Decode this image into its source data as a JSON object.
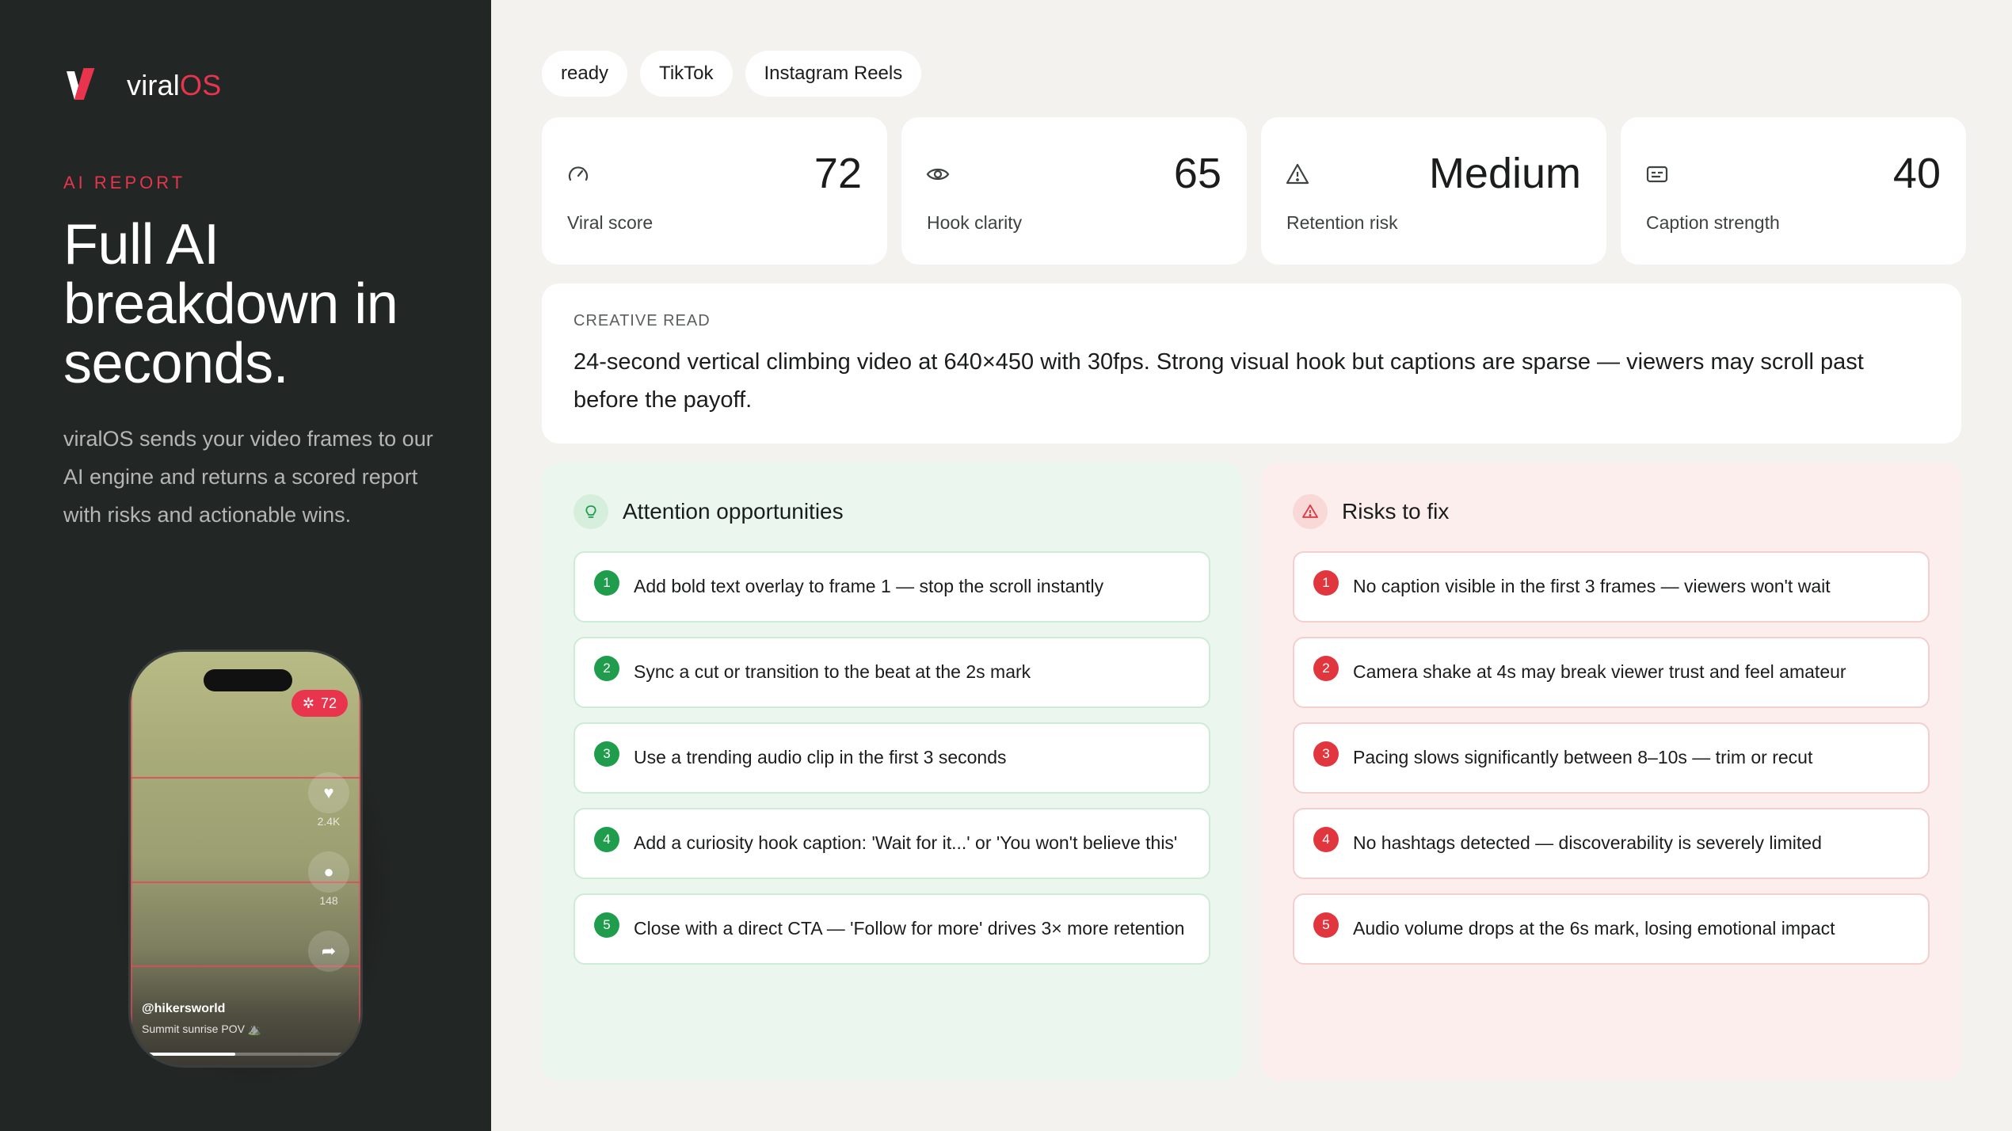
{
  "brand": {
    "name_prefix": "viral",
    "name_suffix": "OS",
    "accent": "#e8354d"
  },
  "sidebar": {
    "label": "AI REPORT",
    "headline": "Full AI breakdown in seconds.",
    "lead": "viralOS sends your video frames to our AI engine and returns a scored report with risks and actionable wins."
  },
  "phone": {
    "score": "72",
    "likes": "2.4K",
    "comments": "148",
    "handle": "@hikersworld",
    "caption": "Summit sunrise POV ⛰️",
    "progress": 0.45,
    "icons": [
      "sparkle-icon",
      "heart-icon",
      "comment-icon",
      "share-icon"
    ]
  },
  "tags": [
    "ready",
    "TikTok",
    "Instagram Reels"
  ],
  "metrics": [
    {
      "value": "72",
      "label": "Viral score",
      "icon": "gauge-icon"
    },
    {
      "value": "65",
      "label": "Hook clarity",
      "icon": "eye-icon"
    },
    {
      "value": "Medium",
      "label": "Retention risk",
      "icon": "warning-icon"
    },
    {
      "value": "40",
      "label": "Caption strength",
      "icon": "caption-icon"
    }
  ],
  "creative": {
    "label": "CREATIVE READ",
    "text": "24-second vertical climbing video at 640×450 with 30fps. Strong visual hook but captions are sparse — viewers may scroll past before the payoff."
  },
  "opportunities": {
    "title": "Attention opportunities",
    "icon": "lightbulb-icon",
    "accent": "#1f9d4c",
    "items": [
      "Add bold text overlay to frame 1 — stop the scroll instantly",
      "Sync a cut or transition to the beat at the 2s mark",
      "Use a trending audio clip in the first 3 seconds",
      "Add a curiosity hook caption: 'Wait for it...' or 'You won't believe this'",
      "Close with a direct CTA — 'Follow for more' drives 3× more retention"
    ]
  },
  "risks": {
    "title": "Risks to fix",
    "icon": "warning-icon",
    "accent": "#e2363f",
    "items": [
      "No caption visible in the first 3 frames — viewers won't wait",
      "Camera shake at 4s may break viewer trust and feel amateur",
      "Pacing slows significantly between 8–10s — trim or recut",
      "No hashtags detected — discoverability is severely limited",
      "Audio volume drops at the 6s mark, losing emotional impact"
    ]
  }
}
